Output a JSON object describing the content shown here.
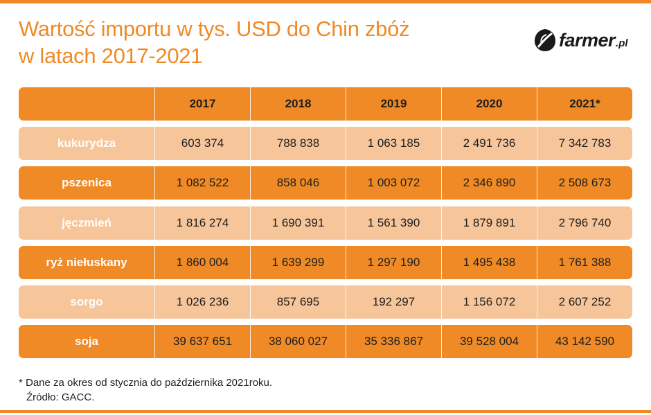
{
  "title": {
    "line1": "Wartość importu w tys. USD do Chin zbóż",
    "line2": "w latach 2017-2021"
  },
  "logo": {
    "name": "farmer",
    "tld": ".pl",
    "icon": "leaf-icon"
  },
  "colors": {
    "accent": "#ef8a26",
    "row_light": "#f6c59a"
  },
  "chart_data": {
    "type": "table",
    "columns": [
      "",
      "2017",
      "2018",
      "2019",
      "2020",
      "2021*"
    ],
    "rows": [
      {
        "label": "kukurydza",
        "values": [
          "603 374",
          "788 838",
          "1 063 185",
          "2 491 736",
          "7 342 783"
        ]
      },
      {
        "label": "pszenica",
        "values": [
          "1 082 522",
          "858 046",
          "1 003 072",
          "2 346 890",
          "2 508 673"
        ]
      },
      {
        "label": "jęczmień",
        "values": [
          "1 816 274",
          "1 690 391",
          "1 561 390",
          "1 879 891",
          "2 796 740"
        ]
      },
      {
        "label": "ryż niełuskany",
        "values": [
          "1 860 004",
          "1 639 299",
          "1 297 190",
          "1 495 438",
          "1 761 388"
        ]
      },
      {
        "label": "sorgo",
        "values": [
          "1 026 236",
          "857 695",
          "192 297",
          "1 156 072",
          "2 607 252"
        ]
      },
      {
        "label": "soja",
        "values": [
          "39 637 651",
          "38 060 027",
          "35 336 867",
          "39 528 004",
          "43 142 590"
        ]
      }
    ]
  },
  "footnote": {
    "note": "* Dane za okres od stycznia do października 2021roku.",
    "source": "Źródło: GACC."
  }
}
